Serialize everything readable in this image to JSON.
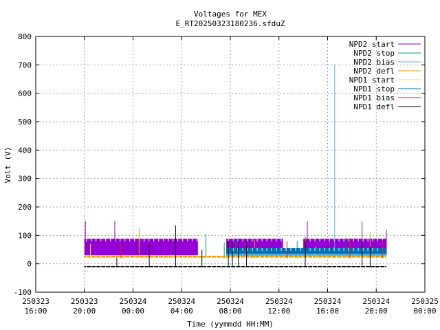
{
  "chart_data": {
    "type": "line",
    "title": "Voltages for MEX",
    "subtitle": "E_RT20250323180236.sfduZ",
    "xlabel": "Time (yymmdd HH:MM)",
    "ylabel": "Volt (V)",
    "xlim": [
      "2025-03-23 16:00",
      "2025-03-25 00:00"
    ],
    "ylim": [
      -100,
      800
    ],
    "grid": true,
    "legend_position": "top-right",
    "yticks": [
      -100,
      0,
      100,
      200,
      300,
      400,
      500,
      600,
      700,
      800
    ],
    "xticks": [
      {
        "date": "250323",
        "time": "16:00"
      },
      {
        "date": "250323",
        "time": "20:00"
      },
      {
        "date": "250324",
        "time": "00:00"
      },
      {
        "date": "250324",
        "time": "04:00"
      },
      {
        "date": "250324",
        "time": "08:00"
      },
      {
        "date": "250324",
        "time": "12:00"
      },
      {
        "date": "250324",
        "time": "16:00"
      },
      {
        "date": "250324",
        "time": "20:00"
      },
      {
        "date": "250325",
        "time": "00:00"
      }
    ],
    "x_domain_hours": [
      16,
      48
    ],
    "series": [
      {
        "name": "NPD2 start",
        "color": "#9400d3",
        "segments": [
          {
            "from": "2025-03-23 20:00",
            "to": "2025-03-24 05:20",
            "low": 30,
            "high": 88
          },
          {
            "from": "2025-03-24 07:40",
            "to": "2025-03-24 12:20",
            "low": 30,
            "high": 88
          },
          {
            "from": "2025-03-24 14:00",
            "to": "2025-03-24 20:50",
            "low": 30,
            "high": 88
          }
        ],
        "spikes": [
          {
            "x": "2025-03-23 20:05",
            "y": 152
          },
          {
            "x": "2025-03-23 22:30",
            "y": 150
          },
          {
            "x": "2025-03-24 14:20",
            "y": 150
          },
          {
            "x": "2025-03-24 18:50",
            "y": 150
          },
          {
            "x": "2025-03-24 20:50",
            "y": 120
          }
        ]
      },
      {
        "name": "NPD2 stop",
        "color": "#009e73",
        "segments": [],
        "spikes": [
          {
            "x": "2025-03-24 06:00",
            "y": 105
          },
          {
            "x": "2025-03-24 07:30",
            "y": 75
          },
          {
            "x": "2025-03-24 13:30",
            "y": 80
          },
          {
            "x": "2025-03-24 16:30",
            "y": 60
          }
        ]
      },
      {
        "name": "NPD2 bias",
        "color": "#56b4e9",
        "segments": [
          {
            "from": "2025-03-24 07:40",
            "to": "2025-03-24 20:50",
            "low": 22,
            "high": 55
          }
        ],
        "spikes": [
          {
            "x": "2025-03-24 16:35",
            "y": 700
          }
        ]
      },
      {
        "name": "NPD2 defl",
        "color": "#e69f00",
        "segments": [
          {
            "from": "2025-03-23 20:00",
            "to": "2025-03-24 20:50",
            "low": 22,
            "high": 28
          }
        ],
        "spikes": [
          {
            "x": "2025-03-24 00:30",
            "y": 125
          },
          {
            "x": "2025-03-24 10:00",
            "y": 90
          },
          {
            "x": "2025-03-24 19:30",
            "y": 110
          }
        ]
      },
      {
        "name": "NPD1 start",
        "color": "#f0e442",
        "segments": [],
        "spikes": [
          {
            "x": "2025-03-23 20:30",
            "y": 70
          },
          {
            "x": "2025-03-24 15:00",
            "y": 60
          }
        ]
      },
      {
        "name": "NPD1 stop",
        "color": "#0072b2",
        "segments": [
          {
            "from": "2025-03-24 07:40",
            "to": "2025-03-24 20:50",
            "low": 35,
            "high": 55
          }
        ],
        "spikes": [
          {
            "x": "2025-03-24 08:40",
            "y": 88
          },
          {
            "x": "2025-03-24 17:30",
            "y": 90
          }
        ]
      },
      {
        "name": "NPD1 bias",
        "color": "#e51e10",
        "segments": [],
        "spikes": [
          {
            "x": "2025-03-23 23:00",
            "y": 70
          },
          {
            "x": "2025-03-24 12:40",
            "y": 80
          },
          {
            "x": "2025-03-24 14:10",
            "y": 95
          },
          {
            "x": "2025-03-24 17:50",
            "y": 90
          },
          {
            "x": "2025-03-24 20:30",
            "y": 85
          }
        ]
      },
      {
        "name": "NPD1 defl",
        "color": "#000000",
        "segments": [
          {
            "from": "2025-03-23 20:00",
            "to": "2025-03-24 20:50",
            "low": -12,
            "high": -8
          }
        ],
        "spikes": [
          {
            "x": "2025-03-23 22:40",
            "y": 20
          },
          {
            "x": "2025-03-24 01:20",
            "y": 70
          },
          {
            "x": "2025-03-24 03:30",
            "y": 135
          },
          {
            "x": "2025-03-24 05:40",
            "y": 50
          },
          {
            "x": "2025-03-24 07:50",
            "y": 80
          },
          {
            "x": "2025-03-24 08:10",
            "y": 85
          },
          {
            "x": "2025-03-24 08:40",
            "y": 80
          },
          {
            "x": "2025-03-24 09:20",
            "y": 80
          },
          {
            "x": "2025-03-24 14:10",
            "y": 80
          },
          {
            "x": "2025-03-24 18:50",
            "y": 80
          },
          {
            "x": "2025-03-24 19:30",
            "y": 60
          }
        ]
      }
    ]
  }
}
